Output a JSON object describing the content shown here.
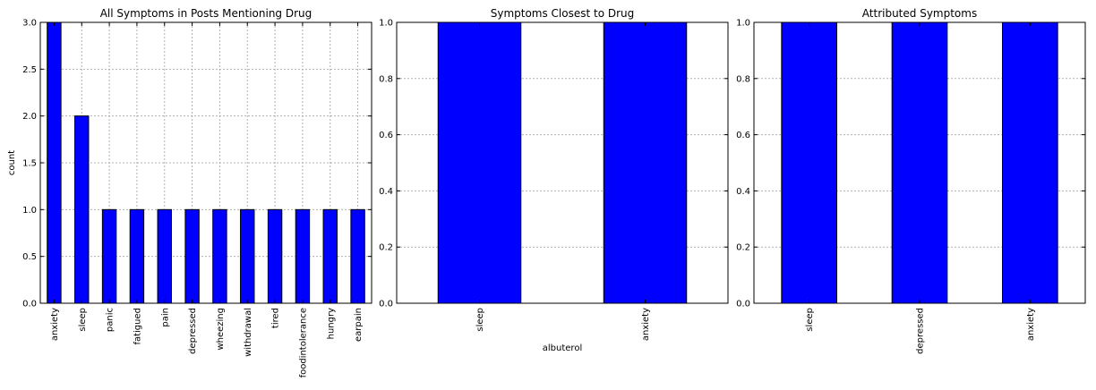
{
  "chart_data": [
    {
      "type": "bar",
      "title": "All Symptoms in Posts Mentioning Drug",
      "xlabel": "",
      "ylabel": "count",
      "categories": [
        "anxiety",
        "sleep",
        "panic",
        "fatigued",
        "pain",
        "depressed",
        "wheezing",
        "withdrawal",
        "tired",
        "foodintolerance",
        "hungry",
        "earpain"
      ],
      "values": [
        3,
        2,
        1,
        1,
        1,
        1,
        1,
        1,
        1,
        1,
        1,
        1
      ],
      "ylim": [
        0,
        3.0
      ],
      "yticks": [
        "0.0",
        "0.5",
        "1.0",
        "1.5",
        "2.0",
        "2.5",
        "3.0"
      ],
      "grid": true,
      "bar_color": "#0000ff"
    },
    {
      "type": "bar",
      "title": "Symptoms Closest to Drug",
      "xlabel": "albuterol",
      "ylabel": "",
      "categories": [
        "sleep",
        "anxiety"
      ],
      "values": [
        1,
        1
      ],
      "ylim": [
        0,
        1.0
      ],
      "yticks": [
        "0.0",
        "0.2",
        "0.4",
        "0.6",
        "0.8",
        "1.0"
      ],
      "grid": true,
      "bar_color": "#0000ff"
    },
    {
      "type": "bar",
      "title": "Attributed Symptoms",
      "xlabel": "",
      "ylabel": "",
      "categories": [
        "sleep",
        "depressed",
        "anxiety"
      ],
      "values": [
        1,
        1,
        1
      ],
      "ylim": [
        0,
        1.0
      ],
      "yticks": [
        "0.0",
        "0.2",
        "0.4",
        "0.6",
        "0.8",
        "1.0"
      ],
      "grid": true,
      "bar_color": "#0000ff"
    }
  ]
}
